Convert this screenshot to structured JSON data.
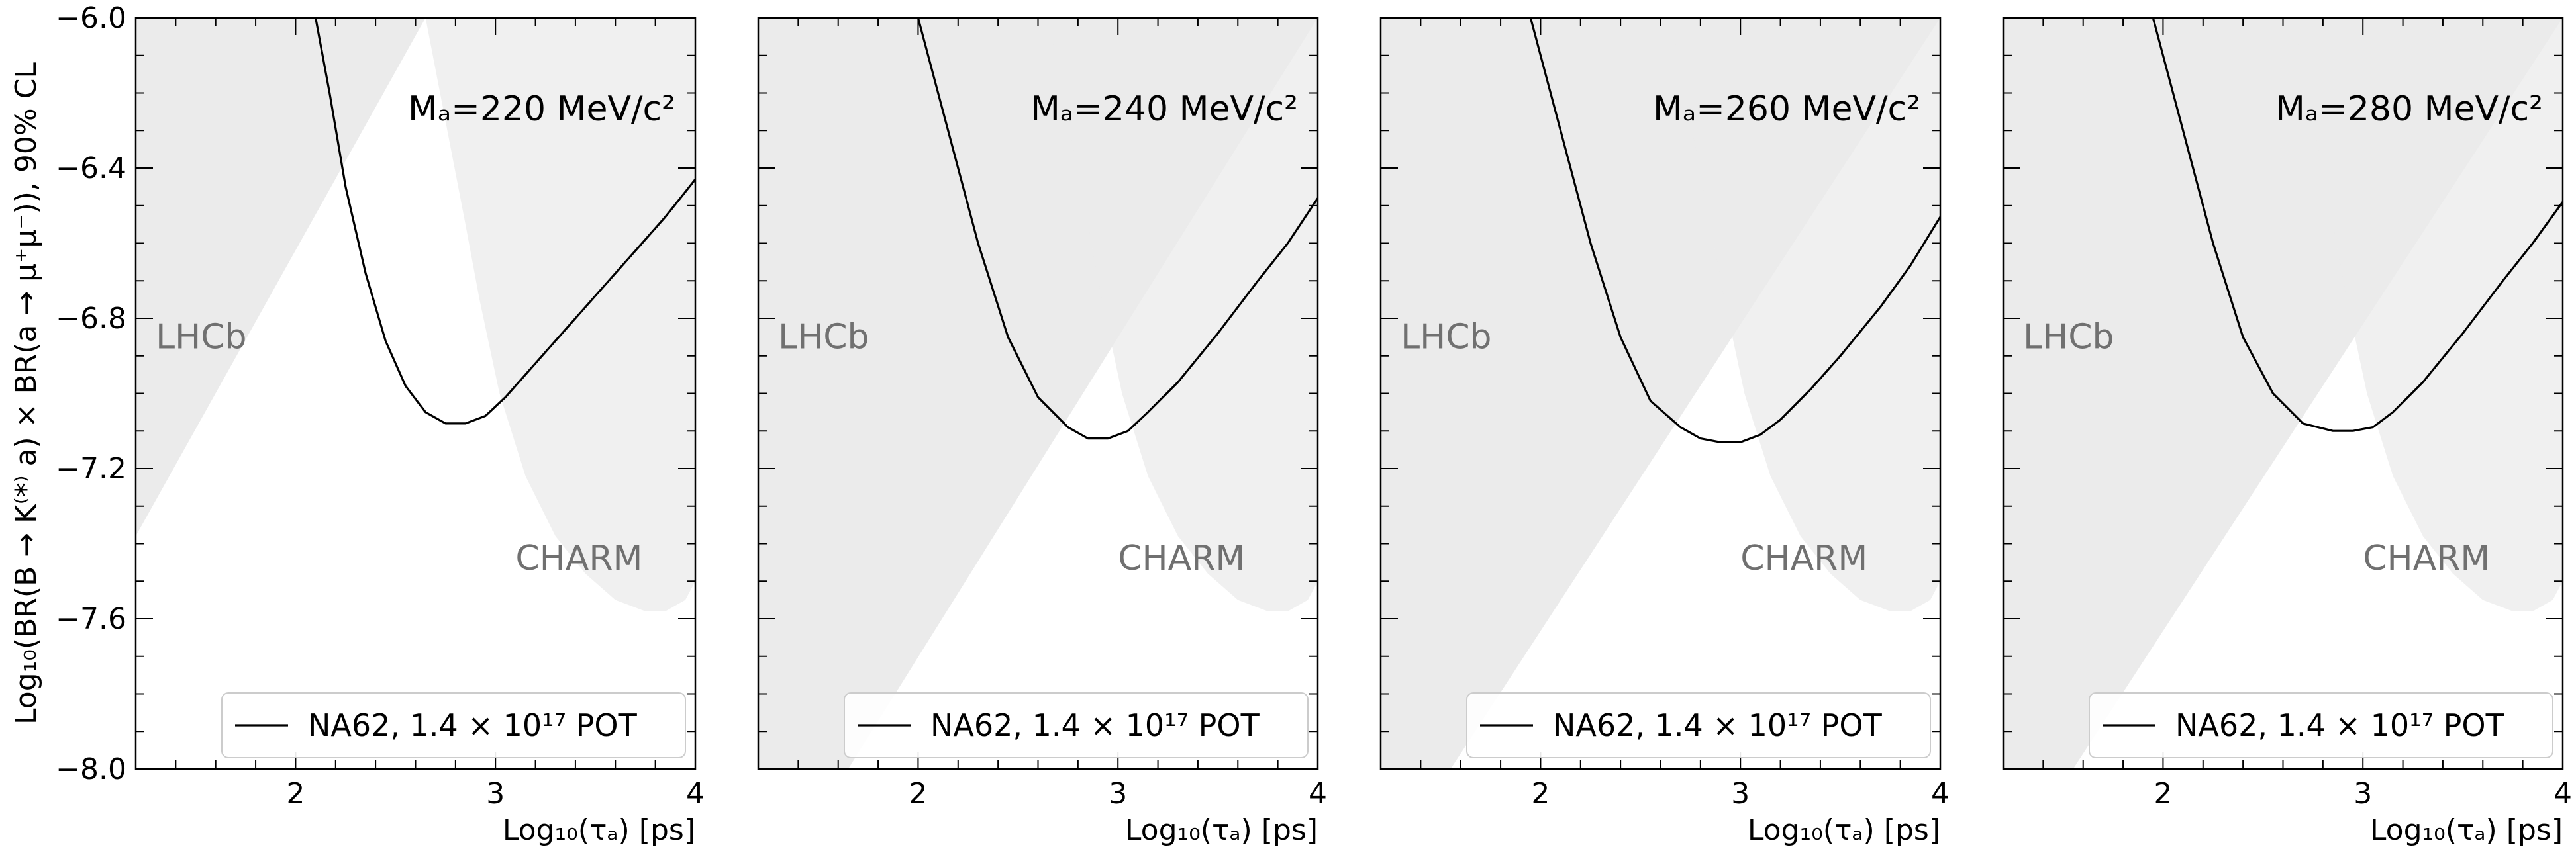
{
  "figure": {
    "ylabel": "Log₁₀(BR(B → K⁽*⁾ a) × BR(a → μ⁺μ⁻)), 90% CL",
    "legend_label": "NA62, 1.4 × 10¹⁷ POT",
    "colors": {
      "exclusion": "#ebebeb",
      "overlap": "#e3e3e3",
      "curve": "#000000",
      "region_label": "#707070"
    }
  },
  "chart_data": [
    {
      "type": "line",
      "title": "Mₐ=220 MeV/c²",
      "xlabel": "Log₁₀(τₐ) [ps]",
      "ylabel": "Log₁₀(BR(B → K⁽*⁾ a) × BR(a → μ⁺μ⁻)), 90% CL",
      "xlim": [
        1.2,
        4.0
      ],
      "ylim": [
        -8.0,
        -6.0
      ],
      "xticks": [
        2,
        3,
        4
      ],
      "xtick_labels": [
        "2",
        "3",
        "4"
      ],
      "yticks": [
        -8.0,
        -7.6,
        -7.2,
        -6.8,
        -6.4,
        -6.0
      ],
      "ytick_labels": [
        "−8.0",
        "−7.6",
        "−7.2",
        "−6.8",
        "−6.4",
        "−6.0"
      ],
      "series": [
        {
          "name": "NA62, 1.4 × 10¹⁷ POT",
          "x": [
            2.1,
            2.17,
            2.25,
            2.35,
            2.45,
            2.55,
            2.65,
            2.75,
            2.85,
            2.95,
            3.05,
            3.15,
            3.3,
            3.5,
            3.7,
            3.85,
            4.0
          ],
          "y": [
            -6.0,
            -6.2,
            -6.45,
            -6.68,
            -6.86,
            -6.98,
            -7.05,
            -7.08,
            -7.08,
            -7.06,
            -7.01,
            -6.95,
            -6.86,
            -6.74,
            -6.62,
            -6.53,
            -6.43
          ]
        }
      ],
      "regions": [
        {
          "name": "LHCb",
          "label_pos": [
            1.3,
            -6.88
          ],
          "x": [
            1.2,
            1.2,
            2.65,
            1.2
          ],
          "y": [
            -8.0,
            -6.0,
            -6.0,
            -7.38
          ]
        },
        {
          "name": "CHARM",
          "label_pos": [
            3.1,
            -7.47
          ],
          "x": [
            2.65,
            4.0,
            4.0,
            3.95,
            3.85,
            3.75,
            3.6,
            3.45,
            3.3,
            3.15,
            3.02,
            2.92,
            2.85,
            2.65
          ],
          "y": [
            -6.0,
            -6.0,
            -7.5,
            -7.55,
            -7.58,
            -7.58,
            -7.55,
            -7.48,
            -7.38,
            -7.22,
            -7.0,
            -6.75,
            -6.55,
            -6.0
          ]
        }
      ],
      "legend": "lower-right"
    },
    {
      "type": "line",
      "title": "Mₐ=240 MeV/c²",
      "xlabel": "Log₁₀(τₐ) [ps]",
      "ylabel": "",
      "xlim": [
        1.2,
        4.0
      ],
      "ylim": [
        -8.0,
        -6.0
      ],
      "xticks": [
        2,
        3,
        4
      ],
      "xtick_labels": [
        "2",
        "3",
        "4"
      ],
      "series": [
        {
          "name": "NA62, 1.4 × 10¹⁷ POT",
          "x": [
            2.0,
            2.15,
            2.3,
            2.45,
            2.6,
            2.75,
            2.85,
            2.95,
            3.05,
            3.15,
            3.3,
            3.5,
            3.7,
            3.85,
            4.0
          ],
          "y": [
            -6.0,
            -6.3,
            -6.6,
            -6.85,
            -7.01,
            -7.09,
            -7.12,
            -7.12,
            -7.1,
            -7.05,
            -6.97,
            -6.84,
            -6.7,
            -6.6,
            -6.48
          ]
        }
      ],
      "regions": [
        {
          "name": "LHCb",
          "label_pos": [
            1.3,
            -6.88
          ],
          "x": [
            1.2,
            1.2,
            4.0,
            4.0,
            1.65
          ],
          "y": [
            -8.0,
            -6.0,
            -6.0,
            -6.0,
            -8.0
          ]
        },
        {
          "name": "CHARM",
          "label_pos": [
            3.0,
            -7.47
          ],
          "x": [
            2.65,
            4.0,
            4.0,
            3.95,
            3.85,
            3.75,
            3.6,
            3.45,
            3.3,
            3.15,
            3.02,
            2.92,
            2.85,
            2.65
          ],
          "y": [
            -6.0,
            -6.0,
            -7.5,
            -7.55,
            -7.58,
            -7.58,
            -7.55,
            -7.48,
            -7.38,
            -7.22,
            -7.0,
            -6.75,
            -6.55,
            -6.0
          ]
        }
      ],
      "legend": "lower-right"
    },
    {
      "type": "line",
      "title": "Mₐ=260 MeV/c²",
      "xlabel": "Log₁₀(τₐ) [ps]",
      "ylabel": "",
      "xlim": [
        1.2,
        4.0
      ],
      "ylim": [
        -8.0,
        -6.0
      ],
      "xticks": [
        2,
        3,
        4
      ],
      "xtick_labels": [
        "2",
        "3",
        "4"
      ],
      "series": [
        {
          "name": "NA62, 1.4 × 10¹⁷ POT",
          "x": [
            1.95,
            2.1,
            2.25,
            2.4,
            2.55,
            2.7,
            2.8,
            2.9,
            3.0,
            3.1,
            3.2,
            3.35,
            3.5,
            3.7,
            3.85,
            4.0
          ],
          "y": [
            -6.0,
            -6.3,
            -6.6,
            -6.85,
            -7.02,
            -7.09,
            -7.12,
            -7.13,
            -7.13,
            -7.11,
            -7.07,
            -6.99,
            -6.9,
            -6.77,
            -6.66,
            -6.53
          ]
        }
      ],
      "regions": [
        {
          "name": "LHCb",
          "label_pos": [
            1.3,
            -6.88
          ],
          "x": [
            1.2,
            1.2,
            4.0,
            4.0,
            1.55
          ],
          "y": [
            -8.0,
            -6.0,
            -6.0,
            -6.0,
            -8.0
          ]
        },
        {
          "name": "CHARM",
          "label_pos": [
            3.0,
            -7.47
          ],
          "x": [
            2.65,
            4.0,
            4.0,
            3.95,
            3.85,
            3.75,
            3.6,
            3.45,
            3.3,
            3.15,
            3.02,
            2.92,
            2.85,
            2.65
          ],
          "y": [
            -6.0,
            -6.0,
            -7.5,
            -7.55,
            -7.58,
            -7.58,
            -7.55,
            -7.48,
            -7.38,
            -7.22,
            -7.0,
            -6.75,
            -6.55,
            -6.0
          ]
        }
      ],
      "legend": "lower-right"
    },
    {
      "type": "line",
      "title": "Mₐ=280 MeV/c²",
      "xlabel": "Log₁₀(τₐ) [ps]",
      "ylabel": "",
      "xlim": [
        1.2,
        4.0
      ],
      "ylim": [
        -8.0,
        -6.0
      ],
      "xticks": [
        2,
        3,
        4
      ],
      "xtick_labels": [
        "2",
        "3",
        "4"
      ],
      "series": [
        {
          "name": "NA62, 1.4 × 10¹⁷ POT",
          "x": [
            1.95,
            2.1,
            2.25,
            2.4,
            2.55,
            2.7,
            2.85,
            2.95,
            3.05,
            3.15,
            3.3,
            3.5,
            3.7,
            3.85,
            4.0
          ],
          "y": [
            -6.0,
            -6.3,
            -6.6,
            -6.85,
            -7.0,
            -7.08,
            -7.1,
            -7.1,
            -7.09,
            -7.05,
            -6.97,
            -6.84,
            -6.7,
            -6.6,
            -6.49
          ]
        }
      ],
      "regions": [
        {
          "name": "LHCb",
          "label_pos": [
            1.3,
            -6.88
          ],
          "x": [
            1.2,
            1.2,
            4.0,
            4.0,
            1.55
          ],
          "y": [
            -8.0,
            -6.0,
            -6.0,
            -6.0,
            -8.0
          ]
        },
        {
          "name": "CHARM",
          "label_pos": [
            3.0,
            -7.47
          ],
          "x": [
            2.65,
            4.0,
            4.0,
            3.95,
            3.85,
            3.75,
            3.6,
            3.45,
            3.3,
            3.15,
            3.02,
            2.92,
            2.85,
            2.65
          ],
          "y": [
            -6.0,
            -6.0,
            -7.5,
            -7.55,
            -7.58,
            -7.58,
            -7.55,
            -7.48,
            -7.38,
            -7.22,
            -7.0,
            -6.75,
            -6.55,
            -6.0
          ]
        }
      ],
      "legend": "lower-right"
    }
  ]
}
